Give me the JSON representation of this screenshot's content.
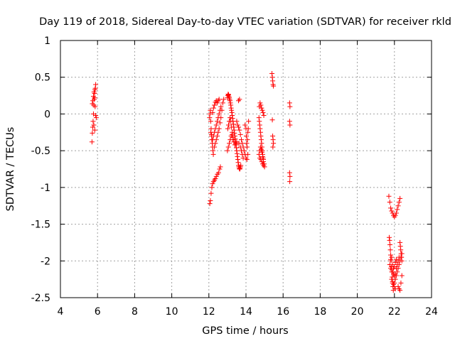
{
  "chart_data": {
    "type": "scatter",
    "title": "Day 119 of 2018, Sidereal Day-to-day VTEC variation (SDTVAR) for receiver rkld",
    "xlabel": "GPS time / hours",
    "ylabel": "SDTVAR / TECUs",
    "xlim": [
      4,
      24
    ],
    "ylim": [
      -2.5,
      1
    ],
    "xticks": [
      "4",
      "6",
      "8",
      "10",
      "12",
      "14",
      "16",
      "18",
      "20",
      "22",
      "24"
    ],
    "yticks": [
      "1",
      "0.5",
      "0",
      "-0.5",
      "-1",
      "-1.5",
      "-2",
      "-2.5"
    ],
    "grid": true,
    "marker": "+",
    "color": "#ff0000",
    "series": [
      {
        "name": "SDTVAR",
        "points": [
          [
            5.7,
            -0.38
          ],
          [
            5.72,
            -0.26
          ],
          [
            5.74,
            -0.18
          ],
          [
            5.76,
            -0.1
          ],
          [
            5.78,
            0.0
          ],
          [
            5.8,
            0.12
          ],
          [
            5.82,
            0.2
          ],
          [
            5.84,
            0.28
          ],
          [
            5.86,
            0.33
          ],
          [
            5.88,
            0.35
          ],
          [
            5.9,
            0.4
          ],
          [
            5.72,
            0.14
          ],
          [
            5.75,
            0.18
          ],
          [
            5.78,
            0.24
          ],
          [
            5.81,
            0.3
          ],
          [
            5.84,
            0.22
          ],
          [
            5.87,
            0.1
          ],
          [
            5.9,
            -0.02
          ],
          [
            5.93,
            -0.05
          ],
          [
            5.8,
            -0.15
          ],
          [
            5.85,
            -0.22
          ],
          [
            12.05,
            -1.22
          ],
          [
            12.08,
            -1.18
          ],
          [
            12.12,
            -1.08
          ],
          [
            12.16,
            -1.0
          ],
          [
            12.2,
            -0.95
          ],
          [
            12.25,
            -0.92
          ],
          [
            12.3,
            -0.9
          ],
          [
            12.35,
            -0.88
          ],
          [
            12.4,
            -0.85
          ],
          [
            12.46,
            -0.82
          ],
          [
            12.52,
            -0.8
          ],
          [
            12.58,
            -0.75
          ],
          [
            12.62,
            -0.72
          ],
          [
            12.04,
            -0.05
          ],
          [
            12.06,
            0.0
          ],
          [
            12.08,
            0.05
          ],
          [
            12.1,
            -0.1
          ],
          [
            12.12,
            -0.2
          ],
          [
            12.14,
            -0.28
          ],
          [
            12.16,
            -0.35
          ],
          [
            12.18,
            -0.4
          ],
          [
            12.2,
            -0.45
          ],
          [
            12.22,
            -0.5
          ],
          [
            12.24,
            -0.55
          ],
          [
            12.1,
            -0.25
          ],
          [
            12.15,
            -0.3
          ],
          [
            12.2,
            -0.35
          ],
          [
            12.25,
            -0.3
          ],
          [
            12.3,
            -0.25
          ],
          [
            12.35,
            -0.2
          ],
          [
            12.4,
            -0.15
          ],
          [
            12.45,
            -0.1
          ],
          [
            12.5,
            -0.05
          ],
          [
            12.55,
            0.0
          ],
          [
            12.6,
            0.05
          ],
          [
            12.65,
            0.1
          ],
          [
            12.3,
            -0.45
          ],
          [
            12.35,
            -0.4
          ],
          [
            12.4,
            -0.35
          ],
          [
            12.45,
            -0.3
          ],
          [
            12.5,
            -0.25
          ],
          [
            12.55,
            -0.2
          ],
          [
            12.6,
            -0.12
          ],
          [
            12.65,
            -0.05
          ],
          [
            12.7,
            0.05
          ],
          [
            12.75,
            0.15
          ],
          [
            12.8,
            0.2
          ],
          [
            12.2,
            0.02
          ],
          [
            12.25,
            0.08
          ],
          [
            12.3,
            0.12
          ],
          [
            12.35,
            0.16
          ],
          [
            12.4,
            0.18
          ],
          [
            12.45,
            0.15
          ],
          [
            12.5,
            0.18
          ],
          [
            12.55,
            0.2
          ],
          [
            13.0,
            0.22
          ],
          [
            13.02,
            0.25
          ],
          [
            13.04,
            0.27
          ],
          [
            13.06,
            0.26
          ],
          [
            13.08,
            0.24
          ],
          [
            13.1,
            0.22
          ],
          [
            13.12,
            0.2
          ],
          [
            13.14,
            0.18
          ],
          [
            13.16,
            0.15
          ],
          [
            13.18,
            0.12
          ],
          [
            13.2,
            0.08
          ],
          [
            13.22,
            0.05
          ],
          [
            13.24,
            0.02
          ],
          [
            13.26,
            -0.02
          ],
          [
            13.28,
            -0.06
          ],
          [
            13.3,
            -0.1
          ],
          [
            13.32,
            -0.14
          ],
          [
            13.34,
            -0.18
          ],
          [
            13.36,
            -0.22
          ],
          [
            13.38,
            -0.26
          ],
          [
            13.4,
            -0.3
          ],
          [
            13.42,
            -0.34
          ],
          [
            13.44,
            -0.38
          ],
          [
            13.46,
            -0.42
          ],
          [
            13.48,
            -0.46
          ],
          [
            13.5,
            -0.5
          ],
          [
            13.52,
            -0.54
          ],
          [
            13.54,
            -0.58
          ],
          [
            13.56,
            -0.62
          ],
          [
            13.58,
            -0.66
          ],
          [
            13.6,
            -0.7
          ],
          [
            13.62,
            -0.72
          ],
          [
            13.64,
            -0.74
          ],
          [
            13.66,
            -0.75
          ],
          [
            13.68,
            -0.74
          ],
          [
            13.7,
            -0.72
          ],
          [
            13.72,
            -0.7
          ],
          [
            13.0,
            -0.5
          ],
          [
            13.05,
            -0.45
          ],
          [
            13.1,
            -0.4
          ],
          [
            13.15,
            -0.35
          ],
          [
            13.2,
            -0.3
          ],
          [
            13.25,
            -0.28
          ],
          [
            13.3,
            -0.32
          ],
          [
            13.35,
            -0.38
          ],
          [
            13.4,
            -0.42
          ],
          [
            13.45,
            -0.4
          ],
          [
            13.5,
            -0.38
          ],
          [
            13.02,
            -0.2
          ],
          [
            13.06,
            -0.15
          ],
          [
            13.1,
            -0.1
          ],
          [
            13.14,
            -0.05
          ],
          [
            13.18,
            -0.1
          ],
          [
            13.22,
            -0.18
          ],
          [
            13.26,
            -0.25
          ],
          [
            13.3,
            -0.35
          ],
          [
            13.5,
            -0.1
          ],
          [
            13.55,
            -0.15
          ],
          [
            13.6,
            -0.18
          ],
          [
            13.65,
            -0.22
          ],
          [
            13.7,
            -0.28
          ],
          [
            13.75,
            -0.35
          ],
          [
            13.8,
            -0.4
          ],
          [
            13.85,
            -0.45
          ],
          [
            13.9,
            -0.5
          ],
          [
            13.95,
            -0.55
          ],
          [
            14.0,
            -0.6
          ],
          [
            14.05,
            -0.62
          ],
          [
            13.6,
            0.18
          ],
          [
            13.65,
            0.2
          ],
          [
            13.62,
            -0.4
          ],
          [
            13.7,
            -0.45
          ],
          [
            13.75,
            -0.5
          ],
          [
            13.8,
            -0.55
          ],
          [
            13.85,
            -0.6
          ],
          [
            13.95,
            -0.15
          ],
          [
            14.0,
            -0.2
          ],
          [
            14.02,
            -0.3
          ],
          [
            14.04,
            -0.4
          ],
          [
            14.06,
            -0.45
          ],
          [
            14.08,
            -0.35
          ],
          [
            14.1,
            -0.25
          ],
          [
            14.12,
            -0.2
          ],
          [
            14.14,
            -0.1
          ],
          [
            14.1,
            -0.55
          ],
          [
            14.7,
            -0.05
          ],
          [
            14.72,
            -0.1
          ],
          [
            14.74,
            -0.15
          ],
          [
            14.76,
            -0.2
          ],
          [
            14.78,
            -0.25
          ],
          [
            14.8,
            -0.3
          ],
          [
            14.82,
            -0.35
          ],
          [
            14.84,
            -0.4
          ],
          [
            14.86,
            -0.45
          ],
          [
            14.88,
            -0.5
          ],
          [
            14.9,
            -0.55
          ],
          [
            14.92,
            -0.6
          ],
          [
            14.94,
            -0.65
          ],
          [
            14.7,
            -0.55
          ],
          [
            14.74,
            -0.5
          ],
          [
            14.78,
            -0.45
          ],
          [
            14.82,
            -0.48
          ],
          [
            14.86,
            -0.52
          ],
          [
            14.9,
            -0.58
          ],
          [
            14.94,
            -0.62
          ],
          [
            14.98,
            -0.68
          ],
          [
            15.0,
            -0.72
          ],
          [
            14.72,
            0.1
          ],
          [
            14.76,
            0.15
          ],
          [
            14.8,
            0.12
          ],
          [
            14.84,
            0.08
          ],
          [
            14.88,
            0.05
          ],
          [
            14.92,
            0.02
          ],
          [
            14.96,
            -0.02
          ],
          [
            14.75,
            -0.6
          ],
          [
            14.8,
            -0.62
          ],
          [
            14.85,
            -0.65
          ],
          [
            14.9,
            -0.68
          ],
          [
            14.95,
            -0.7
          ],
          [
            15.4,
            0.55
          ],
          [
            15.42,
            0.5
          ],
          [
            15.44,
            0.45
          ],
          [
            15.46,
            0.4
          ],
          [
            15.48,
            0.38
          ],
          [
            15.42,
            -0.08
          ],
          [
            15.44,
            -0.3
          ],
          [
            15.46,
            -0.35
          ],
          [
            15.48,
            -0.4
          ],
          [
            15.45,
            -0.45
          ],
          [
            16.35,
            0.15
          ],
          [
            16.37,
            0.1
          ],
          [
            16.35,
            -0.1
          ],
          [
            16.37,
            -0.15
          ],
          [
            16.35,
            -0.8
          ],
          [
            16.37,
            -0.85
          ],
          [
            16.36,
            -0.92
          ],
          [
            21.7,
            -1.12
          ],
          [
            21.75,
            -1.2
          ],
          [
            21.8,
            -1.28
          ],
          [
            21.85,
            -1.32
          ],
          [
            21.9,
            -1.35
          ],
          [
            21.95,
            -1.38
          ],
          [
            22.0,
            -1.4
          ],
          [
            22.05,
            -1.38
          ],
          [
            22.1,
            -1.35
          ],
          [
            22.15,
            -1.3
          ],
          [
            22.2,
            -1.25
          ],
          [
            22.25,
            -1.2
          ],
          [
            22.3,
            -1.15
          ],
          [
            21.72,
            -1.68
          ],
          [
            21.74,
            -1.72
          ],
          [
            21.76,
            -1.78
          ],
          [
            21.78,
            -1.85
          ],
          [
            21.8,
            -1.92
          ],
          [
            21.82,
            -2.0
          ],
          [
            21.84,
            -2.08
          ],
          [
            21.86,
            -2.15
          ],
          [
            21.88,
            -2.22
          ],
          [
            21.9,
            -2.3
          ],
          [
            21.92,
            -2.35
          ],
          [
            21.94,
            -2.4
          ],
          [
            21.75,
            -2.05
          ],
          [
            21.8,
            -2.1
          ],
          [
            21.85,
            -2.12
          ],
          [
            21.9,
            -2.15
          ],
          [
            21.95,
            -2.18
          ],
          [
            22.0,
            -2.2
          ],
          [
            22.05,
            -2.18
          ],
          [
            22.1,
            -2.1
          ],
          [
            22.15,
            -2.05
          ],
          [
            22.2,
            -2.0
          ],
          [
            22.25,
            -1.95
          ],
          [
            22.0,
            -2.3
          ],
          [
            22.05,
            -2.25
          ],
          [
            22.1,
            -2.2
          ],
          [
            22.15,
            -2.15
          ],
          [
            22.2,
            -2.1
          ],
          [
            22.25,
            -2.05
          ],
          [
            22.3,
            -2.0
          ],
          [
            22.35,
            -1.95
          ],
          [
            22.4,
            -1.9
          ],
          [
            22.2,
            -2.35
          ],
          [
            22.25,
            -2.38
          ],
          [
            22.3,
            -2.4
          ],
          [
            22.35,
            -2.3
          ],
          [
            22.4,
            -2.2
          ],
          [
            22.3,
            -1.75
          ],
          [
            22.32,
            -1.8
          ],
          [
            22.34,
            -1.85
          ],
          [
            22.36,
            -1.9
          ],
          [
            22.38,
            -1.95
          ],
          [
            22.4,
            -2.0
          ],
          [
            21.8,
            -1.98
          ],
          [
            21.85,
            -1.95
          ],
          [
            21.9,
            -2.05
          ],
          [
            21.95,
            -2.1
          ],
          [
            22.0,
            -2.08
          ],
          [
            22.05,
            -2.02
          ],
          [
            22.1,
            -1.98
          ],
          [
            21.85,
            -2.25
          ],
          [
            21.9,
            -2.28
          ],
          [
            21.95,
            -2.32
          ],
          [
            22.0,
            -2.35
          ],
          [
            22.05,
            -2.38
          ]
        ]
      }
    ]
  }
}
